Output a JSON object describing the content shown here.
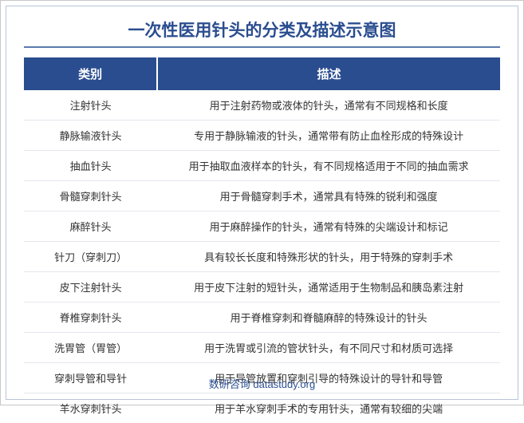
{
  "title": "一次性医用针头的分类及描述示意图",
  "columns": [
    "类别",
    "描述"
  ],
  "rows": [
    [
      "注射针头",
      "用于注射药物或液体的针头，通常有不同规格和长度"
    ],
    [
      "静脉输液针头",
      "专用于静脉输液的针头，通常带有防止血栓形成的特殊设计"
    ],
    [
      "抽血针头",
      "用于抽取血液样本的针头，有不同规格适用于不同的抽血需求"
    ],
    [
      "骨髓穿刺针头",
      "用于骨髓穿刺手术，通常具有特殊的锐利和强度"
    ],
    [
      "麻醉针头",
      "用于麻醉操作的针头，通常有特殊的尖端设计和标记"
    ],
    [
      "针刀（穿刺刀）",
      "具有较长长度和特殊形状的针头，用于特殊的穿刺手术"
    ],
    [
      "皮下注射针头",
      "用于皮下注射的短针头，通常适用于生物制品和胰岛素注射"
    ],
    [
      "脊椎穿刺针头",
      "用于脊椎穿刺和脊髓麻醉的特殊设计的针头"
    ],
    [
      "洗胃管（胃管）",
      "用于洗胃或引流的管状针头，有不同尺寸和材质可选择"
    ],
    [
      "穿刺导管和导针",
      "用于导管放置和穿刺引导的特殊设计的导针和导管"
    ],
    [
      "羊水穿刺针头",
      "用于羊水穿刺手术的专用针头，通常有较细的尖端"
    ]
  ],
  "footer": "数研咨询 datastudy.org"
}
